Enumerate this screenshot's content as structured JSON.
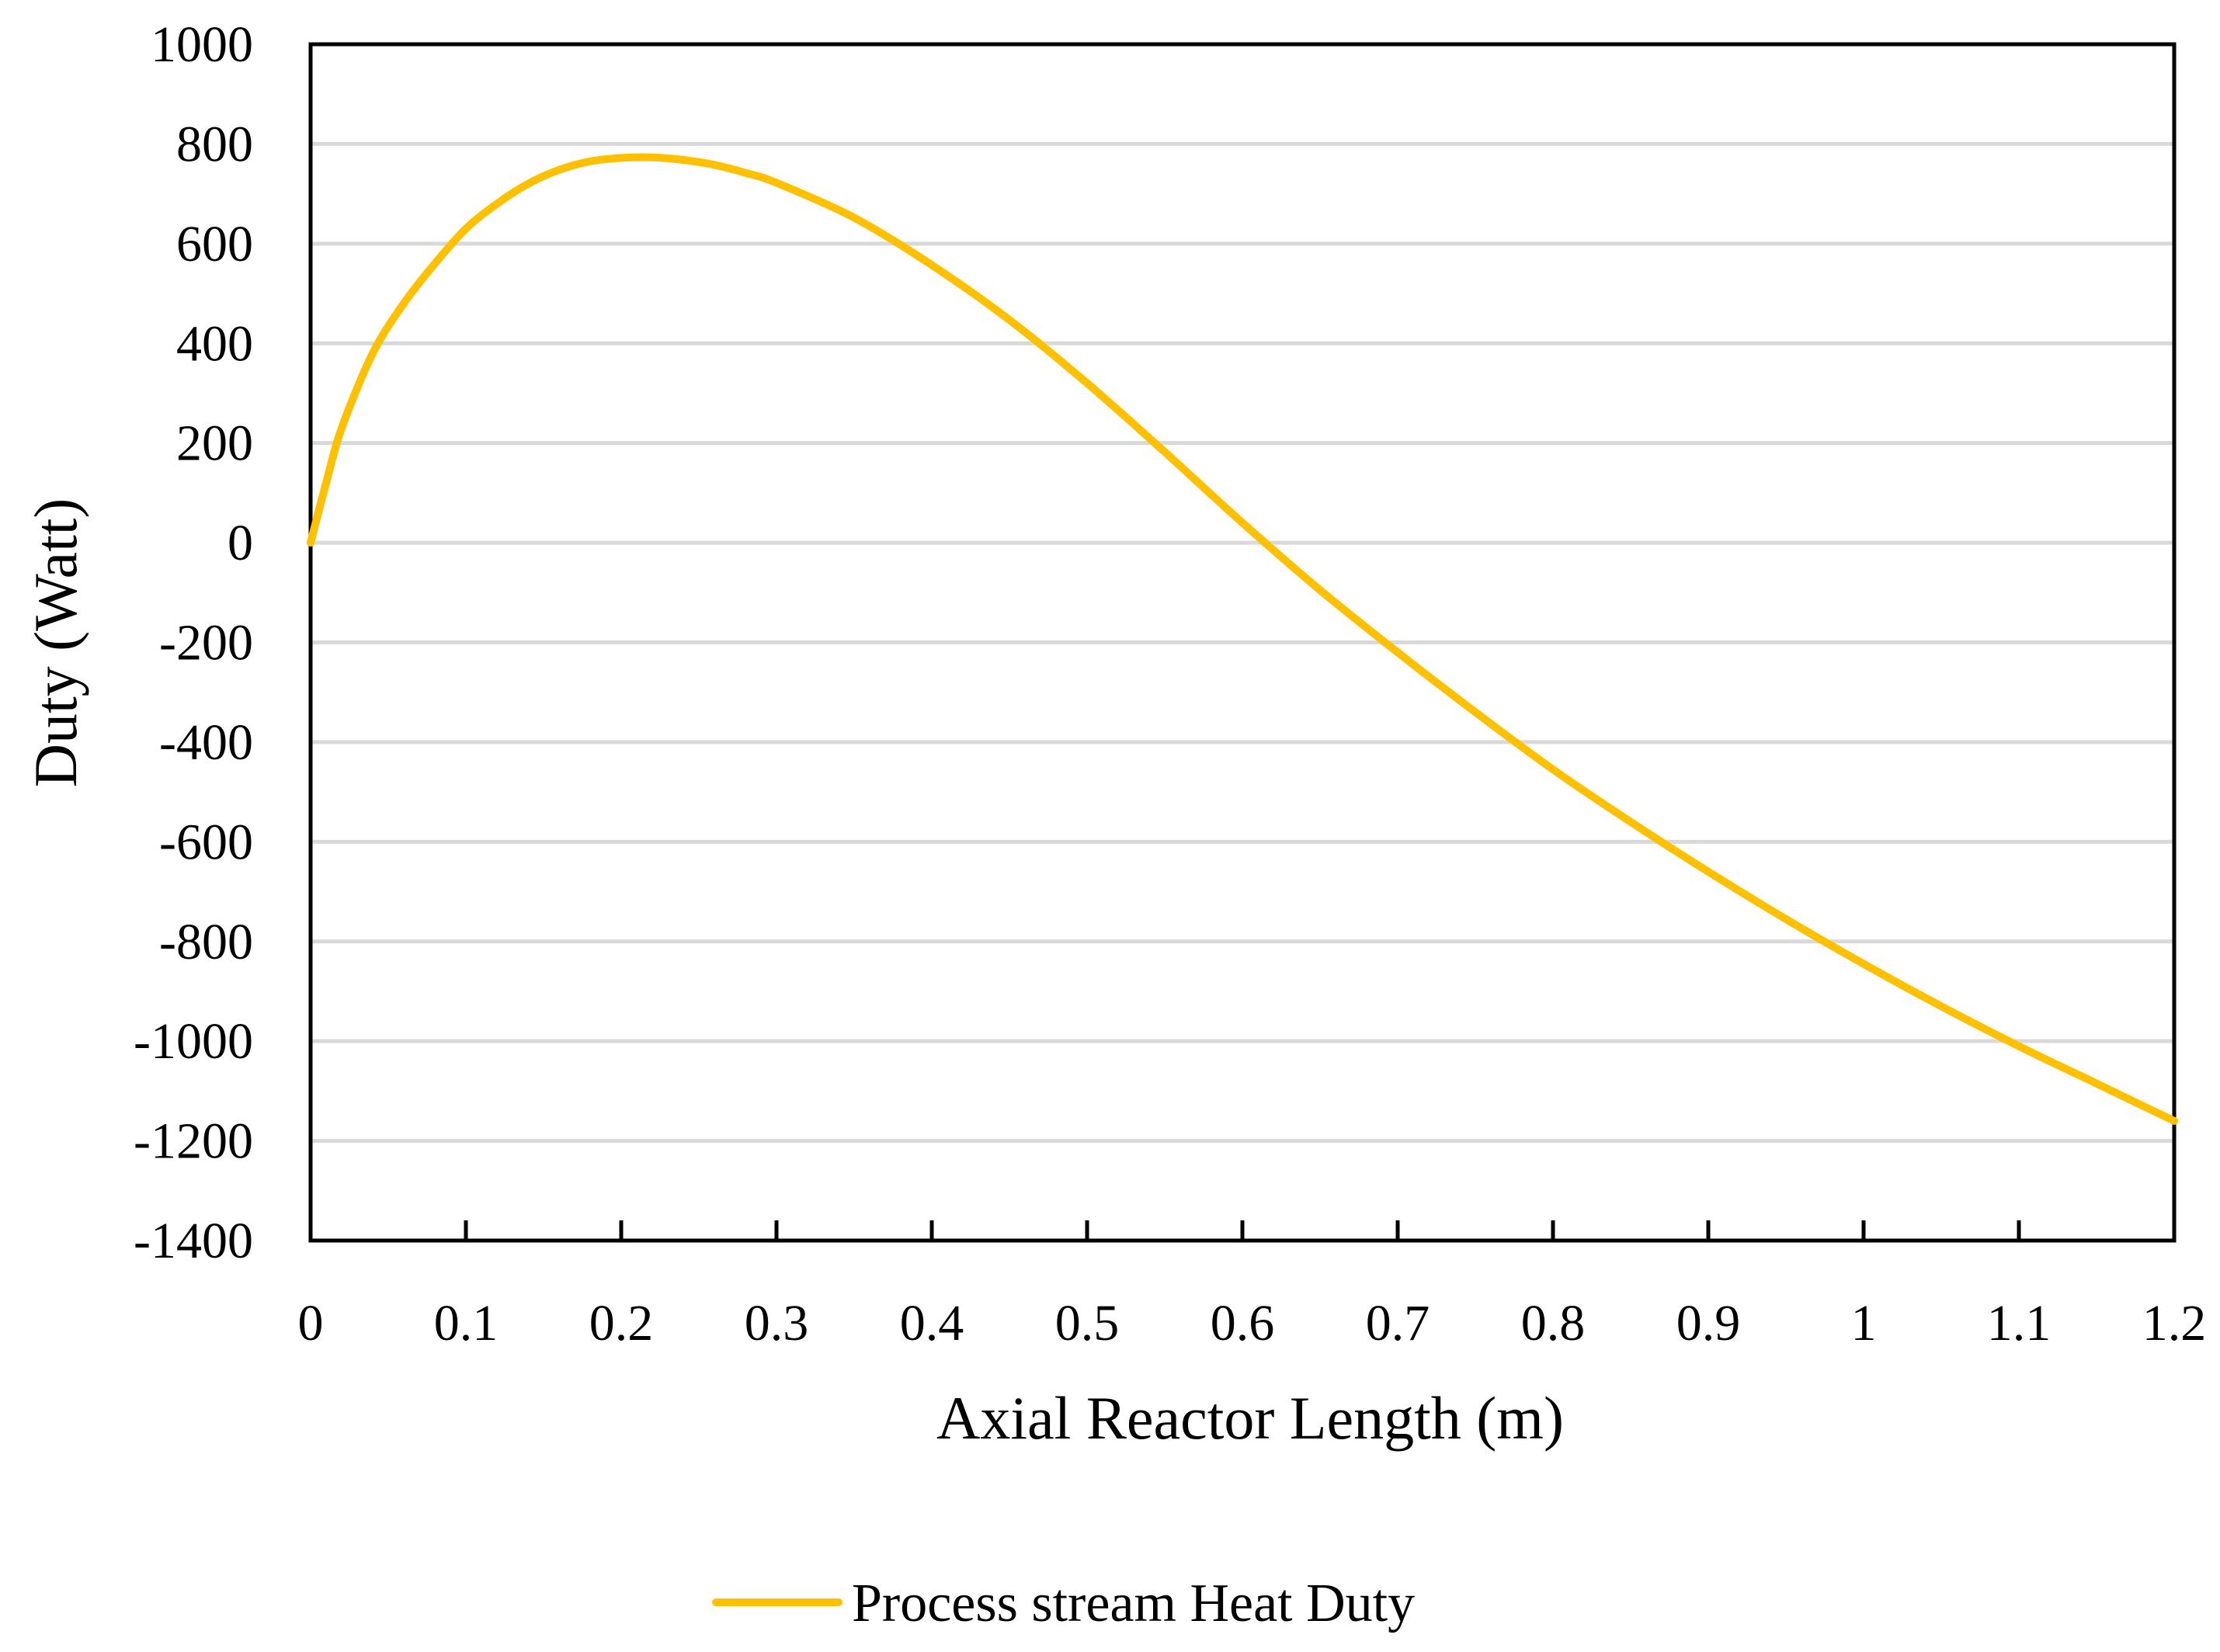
{
  "chart_data": {
    "type": "line",
    "title": "",
    "xlabel": "Axial Reactor Length (m)",
    "ylabel": "Duty (Watt)",
    "xlim": [
      0,
      1.2
    ],
    "ylim": [
      -1400,
      1000
    ],
    "x_ticks": [
      0,
      0.1,
      0.2,
      0.3,
      0.4,
      0.5,
      0.6,
      0.7,
      0.8,
      0.9,
      1,
      1.1,
      1.2
    ],
    "x_tick_labels": [
      "0",
      "0.1",
      "0.2",
      "0.3",
      "0.4",
      "0.5",
      "0.6",
      "0.7",
      "0.8",
      "0.9",
      "1",
      "1.1",
      "1.2"
    ],
    "y_ticks": [
      1000,
      800,
      600,
      400,
      200,
      0,
      -200,
      -400,
      -600,
      -800,
      -1000,
      -1200,
      -1400
    ],
    "y_tick_labels": [
      "1000",
      "800",
      "600",
      "400",
      "200",
      "0",
      "-200",
      "-400",
      "-600",
      "-800",
      "-1000",
      "-1200",
      "-1400"
    ],
    "grid": "horizontal",
    "legend_position": "bottom-center",
    "series": [
      {
        "name": "Process stream Heat Duty",
        "color": "#FFC000",
        "x": [
          0,
          0.01,
          0.02,
          0.04,
          0.06,
          0.08,
          0.1,
          0.12,
          0.14,
          0.16,
          0.18,
          0.2,
          0.22,
          0.24,
          0.26,
          0.28,
          0.3,
          0.35,
          0.4,
          0.45,
          0.5,
          0.55,
          0.6,
          0.65,
          0.7,
          0.75,
          0.8,
          0.85,
          0.9,
          0.95,
          1.0,
          1.05,
          1.1,
          1.15,
          1.2
        ],
        "values": [
          0,
          120,
          230,
          380,
          480,
          560,
          630,
          680,
          720,
          748,
          765,
          772,
          773,
          768,
          758,
          742,
          722,
          652,
          557,
          447,
          320,
          182,
          40,
          -95,
          -220,
          -340,
          -455,
          -560,
          -660,
          -755,
          -845,
          -930,
          -1010,
          -1085,
          -1160
        ]
      }
    ]
  }
}
